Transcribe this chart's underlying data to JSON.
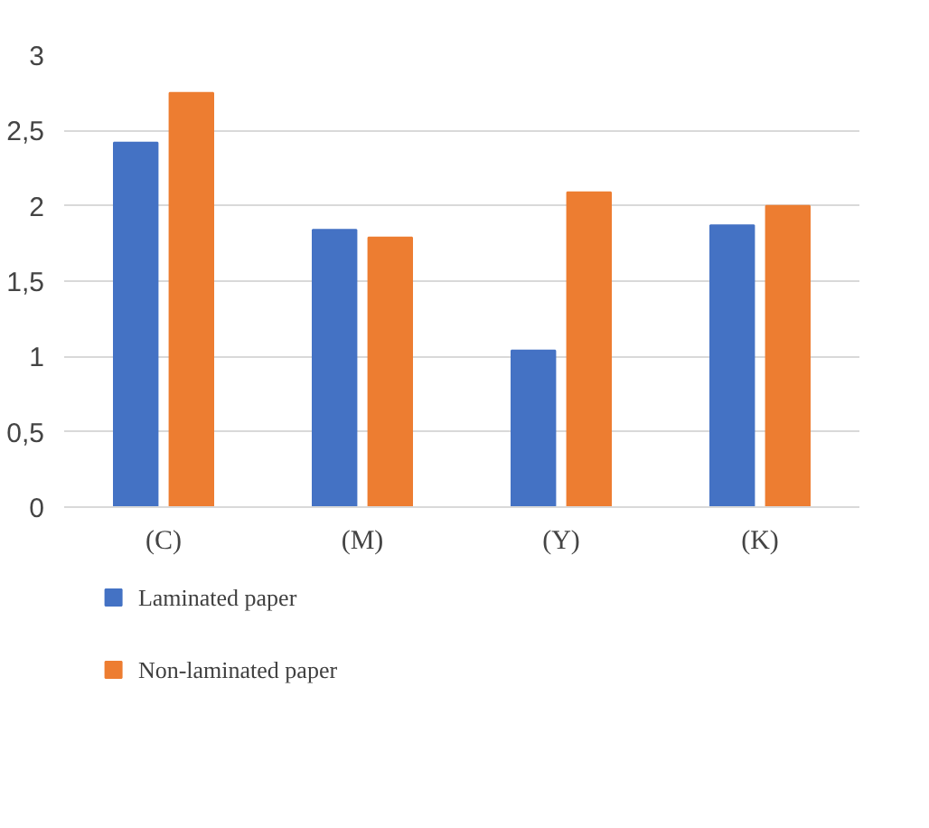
{
  "chart_data": {
    "type": "bar",
    "categories": [
      "(C)",
      "(M)",
      "(Y)",
      "(K)"
    ],
    "series": [
      {
        "name": "Laminated paper",
        "color": "#4472c4",
        "values": [
          2.42,
          1.84,
          1.04,
          1.87
        ]
      },
      {
        "name": "Non-laminated paper",
        "color": "#ed7d31",
        "values": [
          2.75,
          1.79,
          2.09,
          2.0
        ]
      }
    ],
    "ylim": [
      0,
      3
    ],
    "yticks": [
      0,
      {
        "value": 0.5,
        "label": "0,5"
      },
      1,
      {
        "value": 1.5,
        "label": "1,5"
      },
      2,
      {
        "value": 2.5,
        "label": "2,5"
      },
      3
    ],
    "grid": "y",
    "legend": "bottom"
  }
}
